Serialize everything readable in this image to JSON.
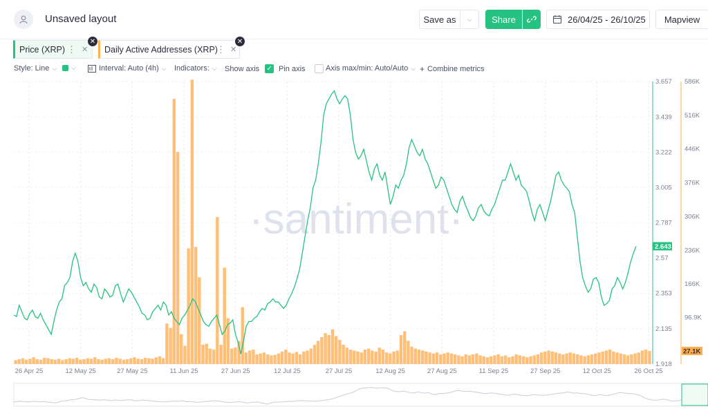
{
  "header": {
    "layout_title": "Unsaved layout",
    "save_as_label": "Save as",
    "share_label": "Share",
    "date_range": "26/04/25 - 26/10/25",
    "mapview_label": "Mapview"
  },
  "metrics": [
    {
      "label": "Price (XRP)",
      "color": "#26c281"
    },
    {
      "label": "Daily Active Addresses (XRP)",
      "color": "#ffad4d"
    }
  ],
  "toolbar": {
    "style": "Style: Line",
    "interval": "Interval: Auto (4h)",
    "indicators": "Indicators:",
    "show_axis": "Show axis",
    "pin_axis": "Pin axis",
    "axis_maxmin": "Axis max/min: Auto/Auto",
    "combine": "Combine metrics"
  },
  "watermark": "·santiment·",
  "chart_data": {
    "type": "line",
    "x_ticks": [
      "26 Apr 25",
      "12 May 25",
      "27 May 25",
      "11 Jun 25",
      "27 Jun 25",
      "12 Jul 25",
      "27 Jul 25",
      "12 Aug 25",
      "27 Aug 25",
      "11 Sep 25",
      "27 Sep 25",
      "12 Oct 25",
      "26 Oct 25"
    ],
    "price_axis": {
      "ticks": [
        "3.657",
        "3.439",
        "3.222",
        "3.005",
        "2.787",
        "2.57",
        "2.353",
        "2.135",
        "1.918"
      ],
      "min": 1.918,
      "max": 3.657,
      "current_label": "2.643"
    },
    "daa_axis": {
      "ticks": [
        "586K",
        "516K",
        "446K",
        "376K",
        "306K",
        "236K",
        "166K",
        "96.9K"
      ],
      "current_label": "27.1K",
      "ylim": [
        0,
        586
      ]
    },
    "series": [
      {
        "name": "Price (XRP)",
        "axis": "left",
        "x_start": "26 Apr 25",
        "x_end": "26 Oct 25",
        "values": [
          2.22,
          2.21,
          2.28,
          2.24,
          2.2,
          2.19,
          2.23,
          2.25,
          2.21,
          2.2,
          2.23,
          2.19,
          2.16,
          2.13,
          2.1,
          2.18,
          2.25,
          2.3,
          2.32,
          2.4,
          2.42,
          2.45,
          2.55,
          2.6,
          2.55,
          2.45,
          2.4,
          2.42,
          2.38,
          2.36,
          2.41,
          2.39,
          2.33,
          2.32,
          2.38,
          2.36,
          2.33,
          2.34,
          2.4,
          2.41,
          2.35,
          2.3,
          2.34,
          2.38,
          2.36,
          2.33,
          2.3,
          2.27,
          2.23,
          2.22,
          2.19,
          2.2,
          2.24,
          2.26,
          2.28,
          2.25,
          2.3,
          2.28,
          2.22,
          2.24,
          2.2,
          2.18,
          2.16,
          2.2,
          2.22,
          2.25,
          2.28,
          2.32,
          2.3,
          2.26,
          2.22,
          2.18,
          2.16,
          2.15,
          2.18,
          2.2,
          2.22,
          2.16,
          2.1,
          2.12,
          2.16,
          2.17,
          2.19,
          2.1,
          2.05,
          1.98,
          2.06,
          2.15,
          2.18,
          2.18,
          2.2,
          2.21,
          2.24,
          2.26,
          2.25,
          2.29,
          2.3,
          2.32,
          2.3,
          2.3,
          2.28,
          2.26,
          2.28,
          2.32,
          2.35,
          2.39,
          2.44,
          2.5,
          2.6,
          2.7,
          2.8,
          2.88,
          3.0,
          3.05,
          3.15,
          3.28,
          3.45,
          3.52,
          3.55,
          3.58,
          3.6,
          3.55,
          3.52,
          3.55,
          3.57,
          3.55,
          3.45,
          3.3,
          3.22,
          3.18,
          3.2,
          3.24,
          3.17,
          3.1,
          3.05,
          3.12,
          3.15,
          3.08,
          3.05,
          3.1,
          3.0,
          2.9,
          2.95,
          3.02,
          3.0,
          3.05,
          3.08,
          3.15,
          3.25,
          3.3,
          3.26,
          3.22,
          3.2,
          3.24,
          3.18,
          3.15,
          3.1,
          3.05,
          3.0,
          3.02,
          3.07,
          3.05,
          3.0,
          2.95,
          2.9,
          2.87,
          2.85,
          2.92,
          2.95,
          2.9,
          2.86,
          2.82,
          2.8,
          2.83,
          2.88,
          2.9,
          2.86,
          2.84,
          2.83,
          2.87,
          2.9,
          2.95,
          3.0,
          3.05,
          3.05,
          3.1,
          3.15,
          3.1,
          3.05,
          3.08,
          3.02,
          3.0,
          2.98,
          2.92,
          2.85,
          2.8,
          2.87,
          2.9,
          2.85,
          2.8,
          2.86,
          2.92,
          3.0,
          3.08,
          3.1,
          3.05,
          3.02,
          3.0,
          2.98,
          2.9,
          2.85,
          2.7,
          2.55,
          2.45,
          2.4,
          2.36,
          2.38,
          2.44,
          2.45,
          2.42,
          2.33,
          2.28,
          2.29,
          2.31,
          2.38,
          2.4,
          2.45,
          2.42,
          2.38,
          2.42,
          2.48,
          2.55,
          2.6,
          2.643
        ]
      },
      {
        "name": "Daily Active Addresses (XRP)",
        "axis": "right",
        "x_start": "26 Apr 25",
        "x_end": "26 Oct 25",
        "values": [
          8,
          10,
          12,
          9,
          11,
          14,
          10,
          9,
          13,
          12,
          10,
          9,
          11,
          8,
          10,
          12,
          11,
          13,
          9,
          10,
          12,
          11,
          14,
          10,
          9,
          11,
          12,
          10,
          13,
          11,
          9,
          10,
          12,
          14,
          11,
          10,
          13,
          12,
          11,
          14,
          16,
          12,
          84,
          75,
          550,
          440,
          62,
          38,
          240,
          590,
          243,
          180,
          40,
          42,
          32,
          30,
          305,
          40,
          200,
          95,
          32,
          34,
          48,
          118,
          24,
          28,
          30,
          20,
          22,
          24,
          20,
          18,
          19,
          22,
          26,
          30,
          24,
          22,
          25,
          20,
          26,
          28,
          32,
          40,
          48,
          56,
          64,
          60,
          72,
          58,
          50,
          40,
          34,
          30,
          28,
          26,
          24,
          30,
          32,
          28,
          26,
          34,
          30,
          24,
          22,
          26,
          28,
          60,
          68,
          48,
          36,
          32,
          30,
          28,
          26,
          24,
          22,
          24,
          20,
          22,
          24,
          22,
          20,
          18,
          16,
          20,
          18,
          20,
          22,
          18,
          16,
          14,
          16,
          18,
          20,
          16,
          18,
          14,
          16,
          20,
          18,
          16,
          14,
          16,
          18,
          20,
          24,
          26,
          28,
          26,
          24,
          22,
          20,
          22,
          24,
          22,
          20,
          18,
          16,
          18,
          20,
          22,
          24,
          26,
          28,
          30,
          26,
          24,
          22,
          20,
          18,
          20,
          22,
          24,
          28,
          30,
          27.1
        ]
      }
    ]
  }
}
